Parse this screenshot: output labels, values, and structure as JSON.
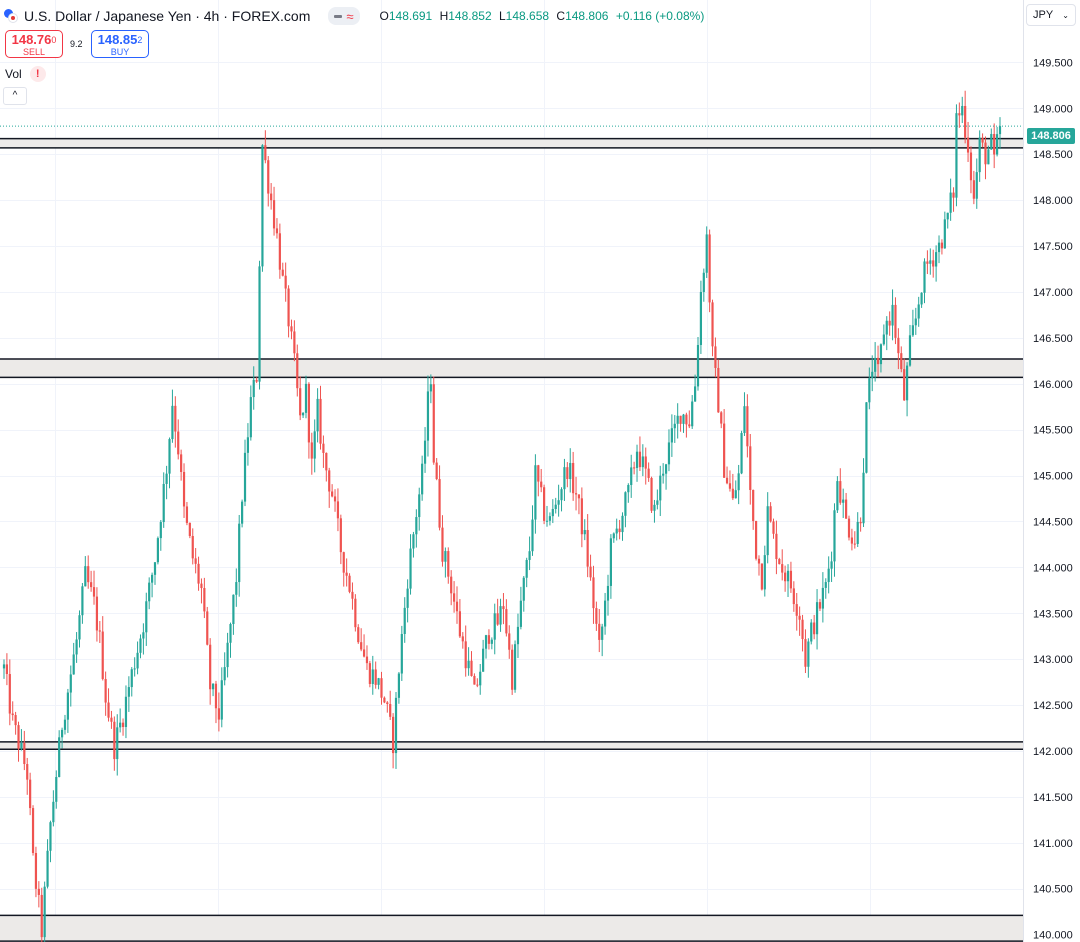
{
  "header": {
    "symbol_title": "U.S. Dollar / Japanese Yen · 4h · FOREX.com",
    "ohlc": [
      {
        "key": "O",
        "value": "148.691"
      },
      {
        "key": "H",
        "value": "148.852"
      },
      {
        "key": "L",
        "value": "148.658"
      },
      {
        "key": "C",
        "value": "148.806"
      }
    ],
    "change": "+0.116 (+0.08%)"
  },
  "trade": {
    "sell_price": "148.76",
    "sell_pip": "0",
    "sell_label": "SELL",
    "spread": "9.2",
    "buy_price": "148.85",
    "buy_pip": "2",
    "buy_label": "BUY"
  },
  "indicators": {
    "vol_label": "Vol",
    "warning": "!"
  },
  "collapse_button": "^",
  "currency": {
    "selected": "JPY"
  },
  "colors": {
    "up": "#26a69a",
    "down": "#ef5350",
    "wick_down": "#ef5350",
    "zone_fill": "#eceae8",
    "last_price": "#26a69a"
  },
  "icons": [
    "flag-icon",
    "status-dash-icon",
    "status-wave-icon",
    "warning-icon",
    "chevron-up-icon",
    "chevron-down-icon"
  ],
  "chart_data": {
    "type": "candlestick",
    "timeframe": "4h",
    "ylim": [
      139.92,
      150.18
    ],
    "y_ticks": [
      "140.000",
      "140.500",
      "141.000",
      "141.500",
      "142.000",
      "142.500",
      "143.000",
      "143.500",
      "144.000",
      "144.500",
      "145.000",
      "145.500",
      "146.000",
      "146.500",
      "147.000",
      "147.500",
      "148.000",
      "148.500",
      "149.000",
      "149.500"
    ],
    "last_price": "148.806",
    "grid": true,
    "zones": [
      {
        "from": 148.57,
        "to": 148.67
      },
      {
        "from": 146.07,
        "to": 146.27
      },
      {
        "from": 142.02,
        "to": 142.1
      },
      {
        "from": 139.93,
        "to": 140.21
      }
    ],
    "anchors": [
      [
        0,
        142.9
      ],
      [
        3,
        142.3
      ],
      [
        5,
        142.1
      ],
      [
        8,
        141.75
      ],
      [
        10,
        140.8
      ],
      [
        11,
        140.55
      ],
      [
        13,
        140.05
      ],
      [
        16,
        141.2
      ],
      [
        20,
        142.3
      ],
      [
        25,
        143.2
      ],
      [
        28,
        143.9
      ],
      [
        31,
        143.6
      ],
      [
        33,
        143.2
      ],
      [
        35,
        142.6
      ],
      [
        38,
        142.05
      ],
      [
        41,
        142.4
      ],
      [
        43,
        142.7
      ],
      [
        48,
        143.4
      ],
      [
        52,
        144.1
      ],
      [
        56,
        145.1
      ],
      [
        58,
        145.8
      ],
      [
        60,
        145.3
      ],
      [
        62,
        144.6
      ],
      [
        65,
        144.1
      ],
      [
        68,
        143.75
      ],
      [
        71,
        142.7
      ],
      [
        74,
        142.4
      ],
      [
        77,
        143.1
      ],
      [
        80,
        143.9
      ],
      [
        82,
        144.8
      ],
      [
        85,
        145.8
      ],
      [
        87,
        146.1
      ],
      [
        89,
        148.6
      ],
      [
        92,
        148.0
      ],
      [
        94,
        147.6
      ],
      [
        96,
        147.1
      ],
      [
        98,
        146.7
      ],
      [
        100,
        146.2
      ],
      [
        102,
        145.6
      ],
      [
        104,
        145.9
      ],
      [
        106,
        145.1
      ],
      [
        108,
        145.7
      ],
      [
        110,
        145.2
      ],
      [
        113,
        144.8
      ],
      [
        116,
        144.2
      ],
      [
        119,
        143.8
      ],
      [
        122,
        143.3
      ],
      [
        125,
        142.9
      ],
      [
        128,
        142.8
      ],
      [
        131,
        142.55
      ],
      [
        134,
        142.1
      ],
      [
        136,
        142.9
      ],
      [
        139,
        143.9
      ],
      [
        142,
        144.6
      ],
      [
        144,
        145.0
      ],
      [
        146,
        145.8
      ],
      [
        147,
        146.1
      ],
      [
        148,
        145.2
      ],
      [
        151,
        144.2
      ],
      [
        154,
        143.8
      ],
      [
        157,
        143.3
      ],
      [
        160,
        142.9
      ],
      [
        162,
        142.6
      ],
      [
        164,
        142.9
      ],
      [
        167,
        143.3
      ],
      [
        170,
        143.4
      ],
      [
        172,
        143.6
      ],
      [
        175,
        142.8
      ],
      [
        178,
        143.6
      ],
      [
        181,
        144.2
      ],
      [
        183,
        145.0
      ],
      [
        186,
        144.6
      ],
      [
        188,
        144.5
      ],
      [
        191,
        144.8
      ],
      [
        194,
        145.1
      ],
      [
        197,
        144.8
      ],
      [
        200,
        144.3
      ],
      [
        203,
        143.6
      ],
      [
        205,
        143.1
      ],
      [
        207,
        143.6
      ],
      [
        209,
        144.2
      ],
      [
        212,
        144.5
      ],
      [
        215,
        144.8
      ],
      [
        218,
        145.3
      ],
      [
        221,
        145.0
      ],
      [
        224,
        144.6
      ],
      [
        227,
        145.1
      ],
      [
        230,
        145.4
      ],
      [
        233,
        145.7
      ],
      [
        236,
        145.6
      ],
      [
        238,
        146.0
      ],
      [
        240,
        147.0
      ],
      [
        242,
        147.6
      ],
      [
        244,
        146.3
      ],
      [
        246,
        145.8
      ],
      [
        248,
        145.1
      ],
      [
        251,
        144.7
      ],
      [
        253,
        145.0
      ],
      [
        255,
        145.8
      ],
      [
        257,
        144.8
      ],
      [
        259,
        144.2
      ],
      [
        261,
        143.9
      ],
      [
        263,
        144.6
      ],
      [
        265,
        144.3
      ],
      [
        268,
        144.0
      ],
      [
        271,
        143.8
      ],
      [
        274,
        143.5
      ],
      [
        276,
        143.0
      ],
      [
        278,
        143.3
      ],
      [
        281,
        143.6
      ],
      [
        283,
        143.8
      ],
      [
        285,
        144.2
      ],
      [
        287,
        145.0
      ],
      [
        290,
        144.5
      ],
      [
        293,
        144.3
      ],
      [
        295,
        144.6
      ],
      [
        297,
        145.7
      ],
      [
        299,
        146.2
      ],
      [
        301,
        146.1
      ],
      [
        303,
        146.6
      ],
      [
        306,
        146.8
      ],
      [
        308,
        146.3
      ],
      [
        310,
        145.85
      ],
      [
        312,
        146.4
      ],
      [
        314,
        146.7
      ],
      [
        316,
        147.1
      ],
      [
        318,
        147.3
      ],
      [
        320,
        147.4
      ],
      [
        322,
        147.5
      ],
      [
        324,
        147.7
      ],
      [
        327,
        148.1
      ],
      [
        328,
        148.9
      ],
      [
        330,
        149.0
      ],
      [
        332,
        148.6
      ],
      [
        334,
        148.0
      ],
      [
        336,
        148.6
      ],
      [
        338,
        148.5
      ],
      [
        340,
        148.6
      ],
      [
        341,
        148.4
      ],
      [
        343,
        148.806
      ]
    ]
  }
}
